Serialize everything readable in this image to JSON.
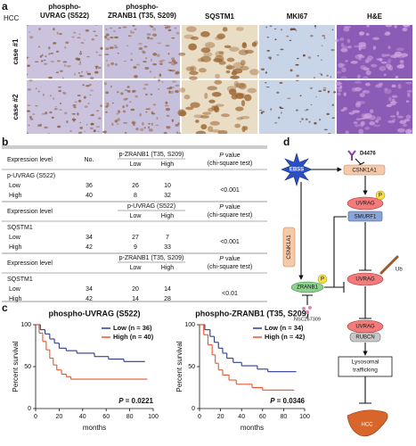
{
  "panel_a": {
    "label": "a",
    "group": "HCC",
    "columns": [
      [
        "phospho-",
        "UVRAG (S522)"
      ],
      [
        "phospho-",
        "ZRANB1 (T35, S209)"
      ],
      [
        "SQSTM1"
      ],
      [
        "MKI67"
      ],
      [
        "H&E"
      ]
    ],
    "rows": [
      "case #1",
      "case #2"
    ]
  },
  "panel_b": {
    "label": "b",
    "tables": [
      {
        "heading": "Expression level",
        "count_heading": "No.",
        "marker": "p-ZRANB1 (T35, S209)",
        "levels": [
          "Low",
          "High"
        ],
        "p_symbol": "P",
        "p_word": "value",
        "test": "(chi-square test)",
        "group": "p-UVRAG (S522)",
        "rows": [
          [
            "Low",
            36,
            26,
            10
          ],
          [
            "High",
            40,
            8,
            32
          ]
        ],
        "p": "<0.001"
      },
      {
        "heading": "Expression level",
        "marker": "p-UVRAG (S522)",
        "levels": [
          "Low",
          "High"
        ],
        "p_symbol": "P",
        "p_word": "value",
        "test": "(chi-square test)",
        "group": "SQSTM1",
        "rows": [
          [
            "Low",
            34,
            27,
            7
          ],
          [
            "High",
            42,
            9,
            33
          ]
        ],
        "p": "<0.001"
      },
      {
        "heading": "Expression level",
        "marker": "p-ZRANB1 (T35, S209)",
        "levels": [
          "Low",
          "High"
        ],
        "p_symbol": "P",
        "p_word": "value",
        "test": "(chi-square test)",
        "group": "SQSTM1",
        "rows": [
          [
            "Low",
            34,
            20,
            14
          ],
          [
            "High",
            42,
            14,
            28
          ]
        ],
        "p": "<0.01"
      }
    ]
  },
  "panel_c": {
    "label": "c",
    "plots": [
      {
        "title": "phospho-UVRAG (S522)",
        "y_label": "Percent survival",
        "x_label": "months",
        "xlim": [
          0,
          100
        ],
        "ylim": [
          0,
          100
        ],
        "xticks": [
          0,
          20,
          40,
          60,
          80,
          100
        ],
        "yticks": [
          0,
          50,
          100
        ],
        "p_symbol": "P",
        "p_value": "= 0.0221",
        "series": [
          {
            "name": "Low (n = 36)",
            "color": "#2b3a8f",
            "x": [
              0,
              4,
              8,
              12,
              16,
              20,
              26,
              35,
              50,
              62,
              75,
              93
            ],
            "y": [
              100,
              94,
              89,
              83,
              78,
              72,
              69,
              66,
              62,
              59,
              56,
              56
            ]
          },
          {
            "name": "High (n = 40)",
            "color": "#e8542b",
            "x": [
              0,
              3,
              6,
              9,
              12,
              15,
              18,
              22,
              26,
              30,
              95
            ],
            "y": [
              100,
              90,
              80,
              70,
              60,
              52,
              46,
              41,
              38,
              35,
              35
            ]
          }
        ]
      },
      {
        "title": "phospho-ZRANB1 (T35, S209)",
        "y_label": "Percent survival",
        "x_label": "months",
        "xlim": [
          0,
          100
        ],
        "ylim": [
          0,
          100
        ],
        "xticks": [
          0,
          20,
          40,
          60,
          80,
          100
        ],
        "yticks": [
          0,
          50,
          100
        ],
        "p_symbol": "P",
        "p_value": "= 0.0346",
        "series": [
          {
            "name": "Low (n = 34)",
            "color": "#2b3a8f",
            "x": [
              0,
              5,
              10,
              14,
              18,
              22,
              26,
              32,
              40,
              55,
              65,
              92
            ],
            "y": [
              100,
              94,
              86,
              79,
              72,
              66,
              60,
              55,
              51,
              47,
              44,
              44
            ]
          },
          {
            "name": "High (n = 42)",
            "color": "#e8542b",
            "x": [
              0,
              4,
              8,
              12,
              15,
              18,
              22,
              28,
              35,
              50,
              60,
              90
            ],
            "y": [
              100,
              88,
              76,
              64,
              54,
              46,
              40,
              34,
              29,
              25,
              22,
              22
            ]
          }
        ]
      }
    ]
  },
  "panel_d": {
    "label": "d",
    "nodes": [
      "EBSS",
      "D4476",
      "CSNK1A1",
      "P",
      "UVRAG",
      "SMURF1",
      "UVRAG",
      "Ub",
      "CSNK1A1",
      "ZRANB1",
      "P",
      "NSC267309",
      "UVRAG",
      "RUBCN",
      [
        "Lysosomal",
        "trafficking"
      ],
      "HCC"
    ]
  }
}
